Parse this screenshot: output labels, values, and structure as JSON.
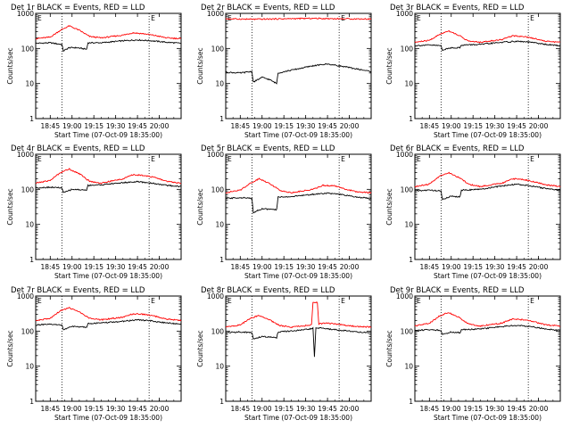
{
  "ylabel": "Counts/sec",
  "xlabel": "Start Time (07-Oct-09 18:35:00)",
  "x_ticks": [
    "18:45",
    "19:00",
    "19:15",
    "19:30",
    "19:45",
    "20:00"
  ],
  "y_ticks": [
    "1",
    "10",
    "100",
    "1000"
  ],
  "marker_label": "E",
  "colors": {
    "events": "#000000",
    "lld": "#ff0000",
    "axis": "#000000",
    "marker": "#000000"
  },
  "chart_data": [
    {
      "type": "line",
      "title": "Det 1r BLACK = Events, RED = LLD",
      "xlim": [
        "18:35",
        "20:15"
      ],
      "ylim": [
        1,
        1000
      ],
      "yscale": "log",
      "marker_times": [
        "18:53",
        "19:53"
      ],
      "series": [
        {
          "name": "Events",
          "color": "#000000",
          "x": [
            "18:35",
            "18:45",
            "18:53",
            "18:54",
            "18:58",
            "19:03",
            "19:10",
            "19:11",
            "19:20",
            "19:35",
            "19:45",
            "19:55",
            "20:05",
            "20:15"
          ],
          "y": [
            140,
            145,
            130,
            85,
            105,
            105,
            95,
            145,
            145,
            165,
            175,
            165,
            150,
            140
          ]
        },
        {
          "name": "LLD",
          "color": "#ff0000",
          "x": [
            "18:35",
            "18:45",
            "18:52",
            "18:58",
            "19:05",
            "19:12",
            "19:20",
            "19:35",
            "19:42",
            "19:50",
            "19:58",
            "20:05",
            "20:15"
          ],
          "y": [
            190,
            210,
            330,
            440,
            330,
            220,
            200,
            240,
            280,
            260,
            230,
            200,
            190
          ]
        }
      ]
    },
    {
      "type": "line",
      "title": "Det 2r BLACK = Events, RED = LLD",
      "xlim": [
        "18:35",
        "20:15"
      ],
      "ylim": [
        1,
        1000
      ],
      "yscale": "log",
      "marker_times": [
        "18:53",
        "19:53"
      ],
      "series": [
        {
          "name": "Events",
          "color": "#000000",
          "x": [
            "18:35",
            "18:45",
            "18:53",
            "18:54",
            "19:00",
            "19:05",
            "19:10",
            "19:11",
            "19:20",
            "19:35",
            "19:45",
            "19:55",
            "20:05",
            "20:15"
          ],
          "y": [
            21,
            20,
            22,
            11,
            15,
            13,
            10,
            20,
            24,
            32,
            36,
            31,
            26,
            22
          ]
        },
        {
          "name": "LLD",
          "color": "#ff0000",
          "x": [
            "18:35",
            "18:55",
            "19:15",
            "19:35",
            "19:55",
            "20:15"
          ],
          "y": [
            700,
            680,
            700,
            720,
            700,
            690
          ]
        }
      ]
    },
    {
      "type": "line",
      "title": "Det 3r BLACK = Events, RED = LLD",
      "xlim": [
        "18:35",
        "20:15"
      ],
      "ylim": [
        1,
        1000
      ],
      "yscale": "log",
      "marker_times": [
        "18:53",
        "19:53"
      ],
      "series": [
        {
          "name": "Events",
          "color": "#000000",
          "x": [
            "18:35",
            "18:45",
            "18:53",
            "18:54",
            "19:00",
            "19:06",
            "19:07",
            "19:20",
            "19:35",
            "19:45",
            "19:55",
            "20:05",
            "20:15"
          ],
          "y": [
            120,
            125,
            120,
            90,
            105,
            105,
            125,
            130,
            150,
            160,
            150,
            130,
            120
          ]
        },
        {
          "name": "LLD",
          "color": "#ff0000",
          "x": [
            "18:35",
            "18:45",
            "18:52",
            "18:58",
            "19:05",
            "19:12",
            "19:20",
            "19:35",
            "19:42",
            "19:50",
            "19:58",
            "20:05",
            "20:15"
          ],
          "y": [
            150,
            170,
            250,
            320,
            240,
            160,
            150,
            180,
            230,
            220,
            190,
            160,
            150
          ]
        }
      ]
    },
    {
      "type": "line",
      "title": "Det 4r BLACK = Events, RED = LLD",
      "xlim": [
        "18:35",
        "20:15"
      ],
      "ylim": [
        1,
        1000
      ],
      "yscale": "log",
      "marker_times": [
        "18:53",
        "19:53"
      ],
      "series": [
        {
          "name": "Events",
          "color": "#000000",
          "x": [
            "18:35",
            "18:45",
            "18:53",
            "18:54",
            "19:00",
            "19:10",
            "19:11",
            "19:20",
            "19:35",
            "19:45",
            "19:55",
            "20:05",
            "20:15"
          ],
          "y": [
            110,
            115,
            110,
            80,
            100,
            95,
            130,
            135,
            155,
            165,
            150,
            130,
            120
          ]
        },
        {
          "name": "LLD",
          "color": "#ff0000",
          "x": [
            "18:35",
            "18:45",
            "18:52",
            "18:58",
            "19:05",
            "19:12",
            "19:20",
            "19:35",
            "19:42",
            "19:50",
            "19:58",
            "20:05",
            "20:15"
          ],
          "y": [
            150,
            180,
            300,
            380,
            280,
            170,
            150,
            200,
            260,
            250,
            210,
            170,
            150
          ]
        }
      ]
    },
    {
      "type": "line",
      "title": "Det 5r BLACK = Events, RED = LLD",
      "xlim": [
        "18:35",
        "20:15"
      ],
      "ylim": [
        1,
        1000
      ],
      "yscale": "log",
      "marker_times": [
        "18:53",
        "19:53"
      ],
      "series": [
        {
          "name": "Events",
          "color": "#000000",
          "x": [
            "18:35",
            "18:45",
            "18:53",
            "18:54",
            "19:00",
            "19:10",
            "19:11",
            "19:20",
            "19:35",
            "19:45",
            "19:55",
            "20:05",
            "20:15"
          ],
          "y": [
            55,
            58,
            55,
            22,
            28,
            26,
            60,
            62,
            72,
            78,
            70,
            60,
            55
          ]
        },
        {
          "name": "LLD",
          "color": "#ff0000",
          "x": [
            "18:35",
            "18:45",
            "18:52",
            "18:58",
            "19:05",
            "19:12",
            "19:20",
            "19:35",
            "19:42",
            "19:50",
            "19:58",
            "20:05",
            "20:15"
          ],
          "y": [
            80,
            95,
            150,
            200,
            150,
            95,
            80,
            100,
            130,
            125,
            100,
            85,
            80
          ]
        }
      ]
    },
    {
      "type": "line",
      "title": "Det 6r BLACK = Events, RED = LLD",
      "xlim": [
        "18:35",
        "20:15"
      ],
      "ylim": [
        1,
        1000
      ],
      "yscale": "log",
      "marker_times": [
        "18:53",
        "19:53"
      ],
      "series": [
        {
          "name": "Events",
          "color": "#000000",
          "x": [
            "18:35",
            "18:45",
            "18:53",
            "18:54",
            "19:00",
            "19:06",
            "19:07",
            "19:20",
            "19:35",
            "19:45",
            "19:55",
            "20:05",
            "20:15"
          ],
          "y": [
            90,
            95,
            90,
            50,
            65,
            60,
            95,
            100,
            125,
            140,
            125,
            105,
            95
          ]
        },
        {
          "name": "LLD",
          "color": "#ff0000",
          "x": [
            "18:35",
            "18:45",
            "18:52",
            "18:58",
            "19:05",
            "19:12",
            "19:20",
            "19:35",
            "19:42",
            "19:50",
            "19:58",
            "20:05",
            "20:15"
          ],
          "y": [
            120,
            140,
            240,
            300,
            220,
            140,
            120,
            150,
            200,
            190,
            160,
            135,
            120
          ]
        }
      ]
    },
    {
      "type": "line",
      "title": "Det 7r BLACK = Events, RED = LLD",
      "xlim": [
        "18:35",
        "20:15"
      ],
      "ylim": [
        1,
        1000
      ],
      "yscale": "log",
      "marker_times": [
        "18:53",
        "19:53"
      ],
      "series": [
        {
          "name": "Events",
          "color": "#000000",
          "x": [
            "18:35",
            "18:45",
            "18:53",
            "18:54",
            "19:00",
            "19:10",
            "19:11",
            "19:20",
            "19:35",
            "19:45",
            "19:55",
            "20:05",
            "20:15"
          ],
          "y": [
            150,
            155,
            150,
            110,
            135,
            130,
            165,
            170,
            190,
            210,
            195,
            170,
            160
          ]
        },
        {
          "name": "LLD",
          "color": "#ff0000",
          "x": [
            "18:35",
            "18:45",
            "18:52",
            "18:58",
            "19:05",
            "19:12",
            "19:20",
            "19:35",
            "19:42",
            "19:50",
            "19:58",
            "20:05",
            "20:15"
          ],
          "y": [
            200,
            230,
            380,
            460,
            350,
            230,
            210,
            250,
            310,
            300,
            260,
            220,
            200
          ]
        }
      ]
    },
    {
      "type": "line",
      "title": "Det 8r BLACK = Events, RED = LLD",
      "xlim": [
        "18:35",
        "20:15"
      ],
      "ylim": [
        1,
        1000
      ],
      "yscale": "log",
      "marker_times": [
        "18:53",
        "19:53"
      ],
      "series": [
        {
          "name": "Events",
          "color": "#000000",
          "x": [
            "18:35",
            "18:45",
            "18:53",
            "18:54",
            "19:00",
            "19:10",
            "19:11",
            "19:20",
            "19:30",
            "19:35",
            "19:36",
            "19:37",
            "19:40",
            "19:45",
            "19:55",
            "20:05",
            "20:15"
          ],
          "y": [
            90,
            95,
            90,
            60,
            70,
            65,
            95,
            100,
            110,
            120,
            18,
            120,
            125,
            115,
            105,
            95,
            90
          ]
        },
        {
          "name": "LLD",
          "color": "#ff0000",
          "x": [
            "18:35",
            "18:45",
            "18:52",
            "18:58",
            "19:05",
            "19:12",
            "19:20",
            "19:34",
            "19:35",
            "19:38",
            "19:39",
            "19:45",
            "19:55",
            "20:05",
            "20:15"
          ],
          "y": [
            130,
            150,
            230,
            280,
            210,
            145,
            130,
            150,
            650,
            650,
            160,
            170,
            150,
            135,
            130
          ]
        }
      ]
    },
    {
      "type": "line",
      "title": "Det 9r BLACK = Events, RED = LLD",
      "xlim": [
        "18:35",
        "20:15"
      ],
      "ylim": [
        1,
        1000
      ],
      "yscale": "log",
      "marker_times": [
        "18:53",
        "19:53"
      ],
      "series": [
        {
          "name": "Events",
          "color": "#000000",
          "x": [
            "18:35",
            "18:45",
            "18:53",
            "18:54",
            "19:00",
            "19:06",
            "19:07",
            "19:20",
            "19:35",
            "19:45",
            "19:55",
            "20:05",
            "20:15"
          ],
          "y": [
            105,
            110,
            105,
            80,
            95,
            90,
            110,
            115,
            135,
            145,
            135,
            115,
            105
          ]
        },
        {
          "name": "LLD",
          "color": "#ff0000",
          "x": [
            "18:35",
            "18:45",
            "18:52",
            "18:58",
            "19:05",
            "19:12",
            "19:20",
            "19:35",
            "19:42",
            "19:50",
            "19:58",
            "20:05",
            "20:15"
          ],
          "y": [
            140,
            165,
            270,
            340,
            250,
            160,
            140,
            170,
            220,
            210,
            180,
            150,
            140
          ]
        }
      ]
    }
  ]
}
